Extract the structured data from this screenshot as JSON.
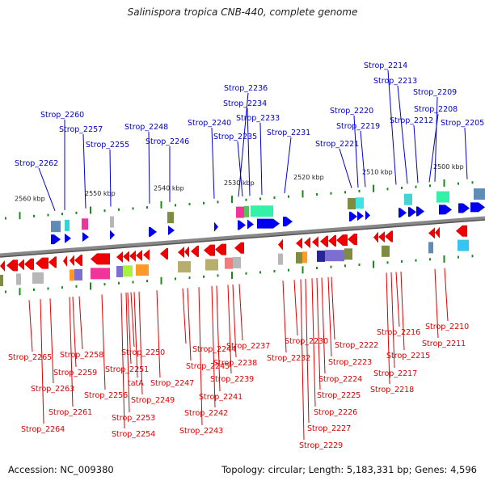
{
  "header": {
    "title": "Salinispora tropica CNB-440, complete genome"
  },
  "footer": {
    "accession": "Accession: NC_009380",
    "summary": "Topology: circular; Length: 5,183,331 bp; Genes: 4,596"
  },
  "colors": {
    "forward_gene": "#0000ee",
    "reverse_gene": "#ee0000",
    "forward_label": "#0000cc",
    "reverse_label": "#dd0000",
    "tick": "#1a8a1a",
    "backbone": "#777777"
  },
  "scale_ticks": [
    {
      "label": "2560 kbp"
    },
    {
      "label": "2550 kbp"
    },
    {
      "label": "2540 kbp"
    },
    {
      "label": "2530 kbp"
    },
    {
      "label": "2520 kbp"
    },
    {
      "label": "2510 kbp"
    },
    {
      "label": "2500 kbp"
    }
  ],
  "forward_labels": [
    "Strop_2262",
    "Strop_2260",
    "Strop_2257",
    "Strop_2255",
    "Strop_2248",
    "Strop_2246",
    "Strop_2240",
    "Strop_2236",
    "Strop_2234",
    "Strop_2235",
    "Strop_2233",
    "Strop_2231",
    "Strop_2221",
    "Strop_2220",
    "Strop_2219",
    "Strop_2214",
    "Strop_2213",
    "Strop_2212",
    "Strop_2209",
    "Strop_2208",
    "Strop_2205"
  ],
  "reverse_labels": [
    "Strop_2265",
    "Strop_2264",
    "Strop_2263",
    "Strop_2261",
    "Strop_2259",
    "Strop_2258",
    "Strop_2256",
    "Strop_2254",
    "Strop_2253",
    "Strop_2251",
    "Strop_2250",
    "tatA",
    "Strop_2249",
    "Strop_2247",
    "Strop_2245",
    "Strop_2244",
    "Strop_2243",
    "Strop_2242",
    "Strop_2241",
    "Strop_2239",
    "Strop_2238",
    "Strop_2237",
    "Strop_2232",
    "Strop_2230",
    "Strop_2229",
    "Strop_2227",
    "Strop_2226",
    "Strop_2225",
    "Strop_2224",
    "Strop_2223",
    "Strop_2222",
    "Strop_2218",
    "Strop_2217",
    "Strop_2216",
    "Strop_2215",
    "Strop_2211",
    "Strop_2210"
  ]
}
